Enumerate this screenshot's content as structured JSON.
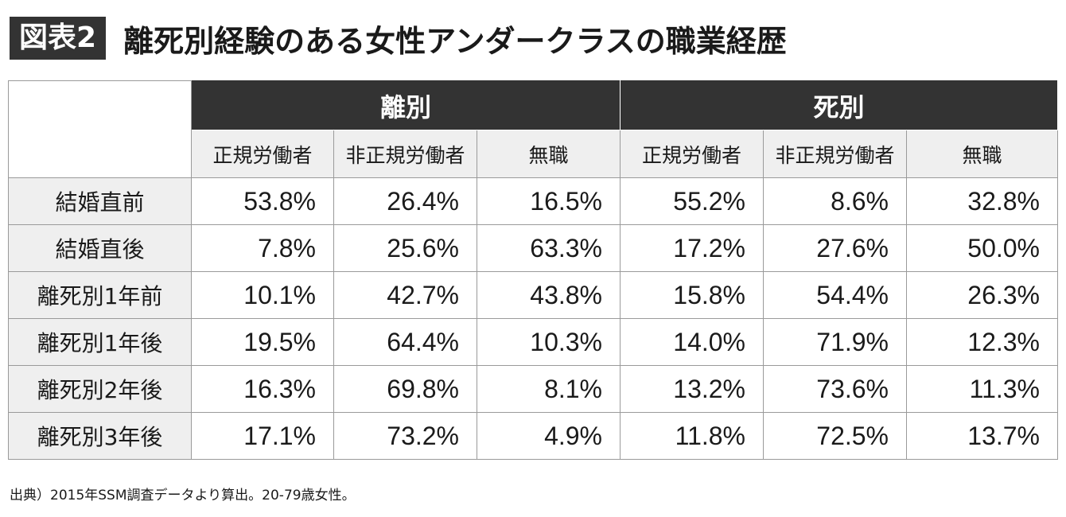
{
  "header": {
    "badge": "図表2",
    "title": "離死別経験のある女性アンダークラスの職業経歴"
  },
  "chart_data": {
    "type": "table",
    "column_groups": [
      {
        "label": "離別",
        "columns": [
          "正規労働者",
          "非正規労働者",
          "無職"
        ]
      },
      {
        "label": "死別",
        "columns": [
          "正規労働者",
          "非正規労働者",
          "無職"
        ]
      }
    ],
    "rows": [
      {
        "label": "結婚直前",
        "values": [
          "53.8%",
          "26.4%",
          "16.5%",
          "55.2%",
          "8.6%",
          "32.8%"
        ]
      },
      {
        "label": "結婚直後",
        "values": [
          "7.8%",
          "25.6%",
          "63.3%",
          "17.2%",
          "27.6%",
          "50.0%"
        ]
      },
      {
        "label": "離死別1年前",
        "values": [
          "10.1%",
          "42.7%",
          "43.8%",
          "15.8%",
          "54.4%",
          "26.3%"
        ]
      },
      {
        "label": "離死別1年後",
        "values": [
          "19.5%",
          "64.4%",
          "10.3%",
          "14.0%",
          "71.9%",
          "12.3%"
        ]
      },
      {
        "label": "離死別2年後",
        "values": [
          "16.3%",
          "69.8%",
          "8.1%",
          "13.2%",
          "73.6%",
          "11.3%"
        ]
      },
      {
        "label": "離死別3年後",
        "values": [
          "17.1%",
          "73.2%",
          "4.9%",
          "11.8%",
          "72.5%",
          "13.7%"
        ]
      }
    ]
  },
  "source": "出典）2015年SSM調査データより算出。20-79歳女性。",
  "colors": {
    "header_bg": "#333333",
    "subheader_bg": "#efefef",
    "border": "#9a9a9a"
  }
}
